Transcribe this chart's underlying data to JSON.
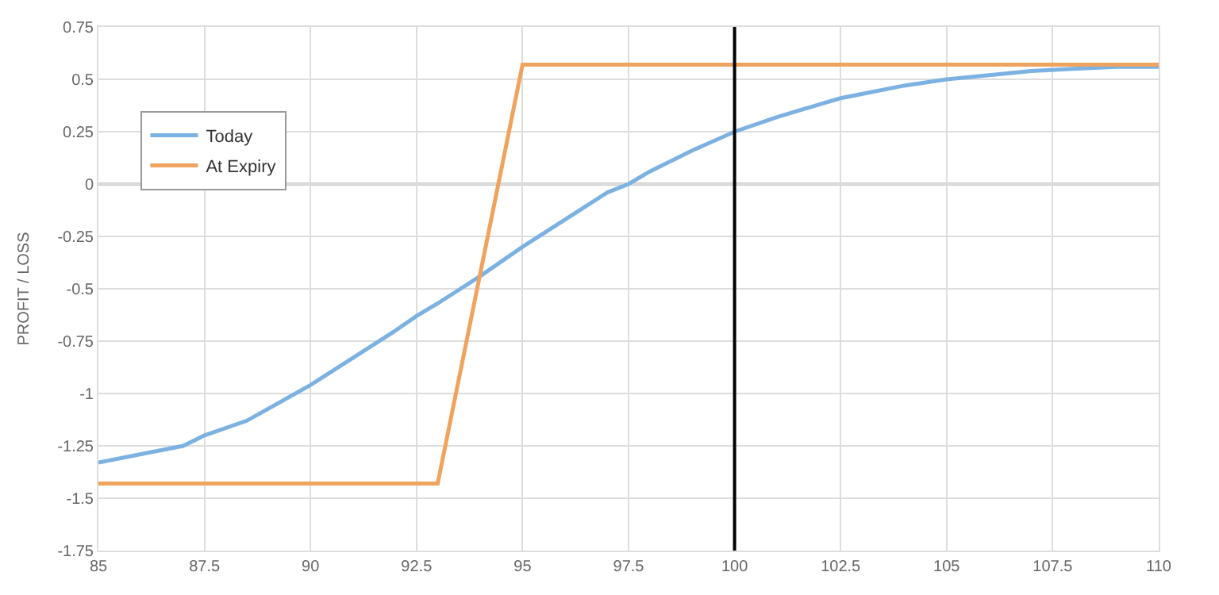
{
  "chart_data": {
    "type": "line",
    "ylabel": "PROFIT / LOSS",
    "xlim": [
      85,
      110
    ],
    "xticks": [
      85,
      87.5,
      90,
      92.5,
      95,
      97.5,
      100,
      102.5,
      105,
      107.5,
      110
    ],
    "ylim": [
      -1.75,
      0.75
    ],
    "yticks": [
      -1.75,
      -1.5,
      -1.25,
      -1,
      -0.75,
      -0.5,
      -0.25,
      0,
      0.25,
      0.5,
      0.75
    ],
    "grid": true,
    "legend": "top left",
    "marker": "none",
    "line_style": "solid",
    "ref_lines": [
      {
        "axis": "y",
        "value": 0,
        "label": null,
        "color": "#999999"
      },
      {
        "axis": "x",
        "value": 100,
        "label": null,
        "color": "#000000"
      }
    ],
    "series": [
      {
        "name": "Today",
        "color": "#7cb2e2",
        "x": [
          85,
          86,
          87,
          87.5,
          88.5,
          90,
          91,
          92,
          92.5,
          93,
          94,
          95,
          96,
          97,
          97.5,
          98,
          99,
          100,
          101,
          102,
          102.5,
          103,
          104,
          105,
          106,
          107,
          108,
          109,
          110
        ],
        "values": [
          -1.33,
          -1.29,
          -1.25,
          -1.2,
          -1.13,
          -0.96,
          -0.83,
          -0.7,
          -0.63,
          -0.57,
          -0.44,
          -0.3,
          -0.17,
          -0.04,
          0,
          0.06,
          0.16,
          0.25,
          0.32,
          0.38,
          0.41,
          0.43,
          0.47,
          0.5,
          0.52,
          0.54,
          0.55,
          0.56,
          0.56
        ]
      },
      {
        "name": "At Expiry",
        "color": "#f0a35e",
        "x": [
          85,
          93,
          95,
          110
        ],
        "values": [
          -1.43,
          -1.43,
          0.57,
          0.57
        ]
      }
    ]
  }
}
